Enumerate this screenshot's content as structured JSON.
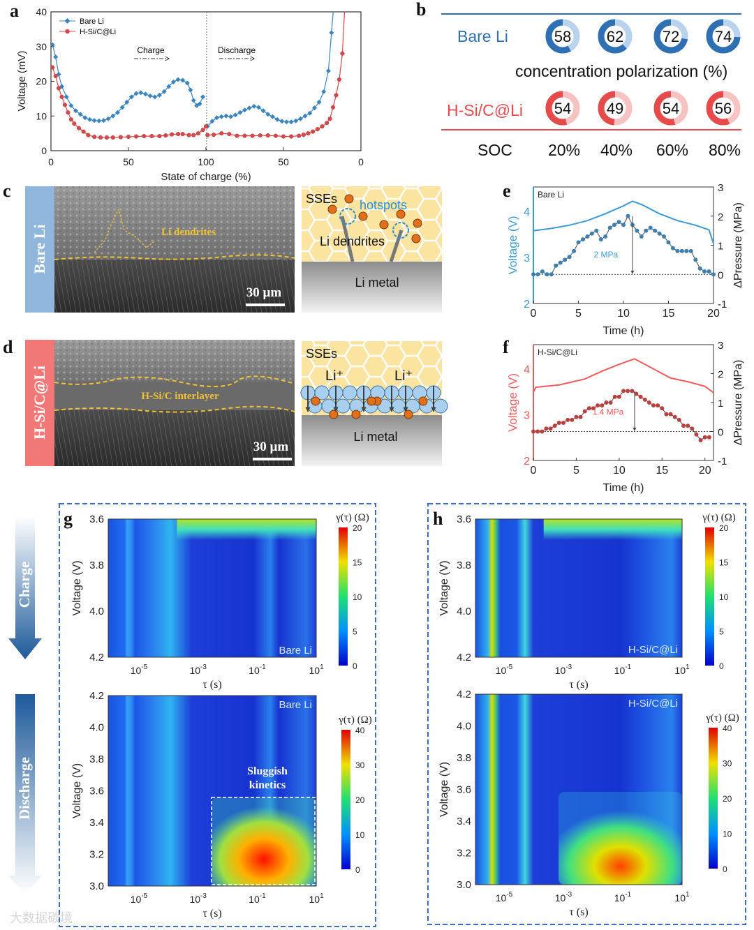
{
  "panel_letters": [
    "a",
    "b",
    "c",
    "d",
    "e",
    "f",
    "g",
    "h"
  ],
  "watermark": "大数据碳境",
  "chart_data": {
    "a": {
      "type": "line",
      "xlabel": "State of charge (%)",
      "ylabel": "Voltage (mV)",
      "ylim": [
        0,
        40
      ],
      "xlim_position": [
        0,
        200
      ],
      "xtick_labels": [
        "0",
        "50",
        "100",
        "50",
        "0"
      ],
      "ytick_labels": [
        "0",
        "10",
        "20",
        "30",
        "40"
      ],
      "annotations": {
        "charge": "Charge",
        "discharge": "Discharge"
      },
      "x_note": "x is cumulative position: 0-100 charge SOC (0→100%), 100-200 discharge (100→0%)",
      "series": [
        {
          "name": "Bare Li",
          "color": "#3a84c1",
          "marker": "diamond",
          "points": [
            [
              1,
              30.5
            ],
            [
              3,
              27
            ],
            [
              5,
              22
            ],
            [
              7,
              18.5
            ],
            [
              10,
              15.5
            ],
            [
              13,
              13
            ],
            [
              16,
              11.5
            ],
            [
              19,
              10.5
            ],
            [
              22,
              9.5
            ],
            [
              25,
              9
            ],
            [
              28,
              8.7
            ],
            [
              31,
              8.6
            ],
            [
              34,
              8.7
            ],
            [
              37,
              9.2
            ],
            [
              40,
              10
            ],
            [
              43,
              11
            ],
            [
              46,
              12.5
            ],
            [
              49,
              14
            ],
            [
              52,
              15.5
            ],
            [
              55,
              16.5
            ],
            [
              58,
              16.7
            ],
            [
              61,
              16.3
            ],
            [
              64,
              15.8
            ],
            [
              67,
              15.5
            ],
            [
              70,
              16
            ],
            [
              73,
              17
            ],
            [
              76,
              18.5
            ],
            [
              79,
              19.8
            ],
            [
              82,
              20.5
            ],
            [
              85,
              20.3
            ],
            [
              88,
              19.5
            ],
            [
              90,
              17.5
            ],
            [
              92,
              14.5
            ],
            [
              94,
              13
            ],
            [
              96,
              13.5
            ],
            [
              98,
              15.5
            ],
            [
              101,
              7
            ],
            [
              104,
              8.5
            ],
            [
              107,
              9.5
            ],
            [
              110,
              9.8
            ],
            [
              113,
              10
            ],
            [
              116,
              9.8
            ],
            [
              119,
              10.3
            ],
            [
              122,
              11
            ],
            [
              125,
              11.7
            ],
            [
              128,
              12.3
            ],
            [
              131,
              12.8
            ],
            [
              134,
              12.5
            ],
            [
              137,
              11.5
            ],
            [
              140,
              10.5
            ],
            [
              143,
              9.8
            ],
            [
              146,
              9
            ],
            [
              149,
              8.5
            ],
            [
              152,
              8.3
            ],
            [
              155,
              8.3
            ],
            [
              158,
              8.6
            ],
            [
              161,
              9.2
            ],
            [
              164,
              10
            ],
            [
              167,
              10.8
            ],
            [
              170,
              12.3
            ],
            [
              173,
              14
            ],
            [
              176,
              17
            ],
            [
              179,
              23
            ],
            [
              181,
              34
            ],
            [
              183,
              45
            ]
          ]
        },
        {
          "name": "H-Si/C@Li",
          "color": "#d9474a",
          "marker": "circle",
          "points": [
            [
              1,
              24
            ],
            [
              3,
              21.5
            ],
            [
              5,
              18
            ],
            [
              7,
              15.5
            ],
            [
              9,
              13.2
            ],
            [
              11,
              11
            ],
            [
              13,
              9
            ],
            [
              15,
              7.8
            ],
            [
              18,
              6.5
            ],
            [
              21,
              5.5
            ],
            [
              24,
              4.5
            ],
            [
              28,
              4
            ],
            [
              32,
              3.8
            ],
            [
              36,
              3.8
            ],
            [
              40,
              3.8
            ],
            [
              45,
              3.9
            ],
            [
              50,
              4
            ],
            [
              55,
              4.1
            ],
            [
              60,
              4.2
            ],
            [
              65,
              4.2
            ],
            [
              70,
              4.2
            ],
            [
              74,
              4.4
            ],
            [
              78,
              4.7
            ],
            [
              82,
              4.8
            ],
            [
              85,
              4.8
            ],
            [
              89,
              4.5
            ],
            [
              92,
              4.5
            ],
            [
              95,
              5
            ],
            [
              98,
              6
            ],
            [
              100,
              7
            ],
            [
              101,
              4.5
            ],
            [
              105,
              4.6
            ],
            [
              110,
              5
            ],
            [
              115,
              4.8
            ],
            [
              120,
              4.3
            ],
            [
              125,
              4.3
            ],
            [
              130,
              4.3
            ],
            [
              135,
              4.4
            ],
            [
              140,
              4.4
            ],
            [
              145,
              4.3
            ],
            [
              150,
              4.1
            ],
            [
              155,
              4.1
            ],
            [
              160,
              4.3
            ],
            [
              163,
              4.6
            ],
            [
              166,
              5
            ],
            [
              169,
              5.5
            ],
            [
              172,
              6.2
            ],
            [
              175,
              7
            ],
            [
              178,
              8
            ],
            [
              180,
              9.2
            ],
            [
              182,
              12.5
            ],
            [
              184,
              16
            ],
            [
              186,
              20.5
            ],
            [
              188,
              28
            ],
            [
              190,
              45
            ]
          ]
        }
      ]
    },
    "b": {
      "type": "pie",
      "title": "concentration polarization (%)",
      "x_label": "SOC",
      "categories": [
        "20%",
        "40%",
        "60%",
        "80%"
      ],
      "series": [
        {
          "name": "Bare Li",
          "color": "#2f6fb3",
          "light": "#b9d3ec",
          "values": [
            58,
            62,
            72,
            74
          ]
        },
        {
          "name": "H-Si/C@Li",
          "color": "#e64a4a",
          "light": "#f7c2c2",
          "values": [
            54,
            49,
            54,
            56
          ]
        }
      ]
    },
    "e": {
      "type": "line",
      "label": "Bare Li",
      "xlabel": "Time (h)",
      "ylabel": "Voltage (V)",
      "y2label": "ΔPressure (MPa)",
      "xlim": [
        0,
        20
      ],
      "ylim": [
        2,
        4.53
      ],
      "y2lim": [
        -1,
        3
      ],
      "xticks": [
        0,
        5,
        10,
        15,
        20
      ],
      "yticks": [
        2,
        3,
        4
      ],
      "y2ticks": [
        -1,
        0,
        1,
        2,
        3
      ],
      "color": "#3a9ad9",
      "annotation": "2 MPa",
      "annotation_time": 11,
      "annotation_value": 2,
      "voltage": [
        [
          0,
          3.58
        ],
        [
          2,
          3.63
        ],
        [
          4,
          3.7
        ],
        [
          6,
          3.8
        ],
        [
          8,
          3.95
        ],
        [
          10,
          4.12
        ],
        [
          11,
          4.22
        ],
        [
          12,
          4.15
        ],
        [
          14,
          3.95
        ],
        [
          16,
          3.8
        ],
        [
          18,
          3.7
        ],
        [
          19.5,
          3.6
        ],
        [
          20,
          3.3
        ]
      ],
      "pressure_step": 0.5,
      "pressure": [
        0,
        0,
        0.1,
        0,
        0,
        0.3,
        0.4,
        0.5,
        0.6,
        0.8,
        1.1,
        1.2,
        1.3,
        1.4,
        1.5,
        1.2,
        1.3,
        1.6,
        1.7,
        1.8,
        1.7,
        2.0,
        1.7,
        1.5,
        1.3,
        1.5,
        1.6,
        1.5,
        1.4,
        1.3,
        1.1,
        0.9,
        0.8,
        0.8,
        0.8,
        0.8,
        0.5,
        0.2,
        0.1,
        0.1,
        0.0
      ],
      "pressure_color": "#3f7fb0"
    },
    "f": {
      "type": "line",
      "label": "H-Si/C@Li",
      "xlabel": "Time (h)",
      "ylabel": "Voltage (V)",
      "y2label": "ΔPressure (MPa)",
      "xlim": [
        0,
        21
      ],
      "ylim": [
        2,
        4.53
      ],
      "y2lim": [
        -1,
        3
      ],
      "xticks": [
        0,
        5,
        10,
        15,
        20
      ],
      "yticks": [
        2,
        3,
        4
      ],
      "y2ticks": [
        -1,
        0,
        1,
        2,
        3
      ],
      "color": "#ef5b5b",
      "annotation": "1.4 MPa",
      "annotation_time": 11.8,
      "annotation_value": 1.4,
      "voltage": [
        [
          0,
          3.5
        ],
        [
          0.3,
          3.6
        ],
        [
          3,
          3.65
        ],
        [
          6,
          3.78
        ],
        [
          8,
          3.95
        ],
        [
          10,
          4.1
        ],
        [
          11.8,
          4.22
        ],
        [
          14,
          4.0
        ],
        [
          16,
          3.8
        ],
        [
          18,
          3.72
        ],
        [
          20,
          3.62
        ],
        [
          21,
          3.48
        ]
      ],
      "pressure_step": 0.5,
      "pressure": [
        0,
        0,
        0,
        0.1,
        0.1,
        0.2,
        0.3,
        0.3,
        0.4,
        0.4,
        0.5,
        0.5,
        0.7,
        0.8,
        0.8,
        0.9,
        0.9,
        1.0,
        1.0,
        1.2,
        1.2,
        1.4,
        1.4,
        1.4,
        1.3,
        1.2,
        1.1,
        1.0,
        0.9,
        0.9,
        0.8,
        0.6,
        0.6,
        0.5,
        0.4,
        0.2,
        0.2,
        0.1,
        -0.1,
        -0.3,
        -0.2,
        -0.2
      ],
      "pressure_color": "#b8413f"
    },
    "g_top": {
      "type": "heatmap",
      "label": "Bare Li",
      "xlabel": "τ (s)",
      "ylabel": "Voltage (V)",
      "ytick_labels": [
        "3.6",
        "3.8",
        "4.0",
        "4.2"
      ],
      "xtick_exps": [
        "-5",
        "-3",
        "-1",
        "1"
      ],
      "colorbar_title": "γ(τ) (Ω)",
      "colorbar_ticks": [
        "20",
        "15",
        "10",
        "5",
        "0"
      ],
      "zlim": [
        0,
        20
      ]
    },
    "g_bottom": {
      "type": "heatmap",
      "label": "Bare Li",
      "xlabel": "τ (s)",
      "ylabel": "Voltage (V)",
      "ytick_labels": [
        "4.2",
        "4.0",
        "3.8",
        "3.6",
        "3.4",
        "3.2",
        "3.0"
      ],
      "xtick_exps": [
        "-5",
        "-3",
        "-1",
        "1"
      ],
      "colorbar_title": "γ(τ) (Ω)",
      "colorbar_ticks": [
        "40",
        "30",
        "20",
        "10",
        "0"
      ],
      "zlim": [
        0,
        40
      ],
      "annotation": [
        "Sluggish",
        "kinetics"
      ]
    },
    "h_top": {
      "type": "heatmap",
      "label": "H-Si/C@Li",
      "xlabel": "τ (s)",
      "ylabel": "Voltage (V)",
      "ytick_labels": [
        "3.6",
        "3.8",
        "4.0",
        "4.2"
      ],
      "xtick_exps": [
        "-5",
        "-3",
        "-1",
        "1"
      ],
      "colorbar_title": "γ(τ) (Ω)",
      "colorbar_ticks": [
        "20",
        "15",
        "10",
        "5",
        "0"
      ],
      "zlim": [
        0,
        20
      ]
    },
    "h_bottom": {
      "type": "heatmap",
      "label": "H-Si/C@Li",
      "xlabel": "τ (s)",
      "ylabel": "Voltage (V)",
      "ytick_labels": [
        "4.2",
        "4.0",
        "3.8",
        "3.6",
        "3.4",
        "3.2",
        "3.0"
      ],
      "xtick_exps": [
        "-5",
        "-3",
        "-1",
        "1"
      ],
      "colorbar_title": "γ(τ) (Ω)",
      "colorbar_ticks": [
        "40",
        "30",
        "20",
        "10",
        "0"
      ],
      "zlim": [
        0,
        40
      ]
    }
  },
  "panel_c": {
    "side_label": "Bare Li",
    "sem_label": "Li dendrites",
    "scale": "30 µm",
    "schematic": {
      "sse": "SSEs",
      "hotspots": "hotspots",
      "dendrites": "Li dendrites",
      "metal": "Li metal"
    }
  },
  "panel_d": {
    "side_label": "H-Si/C@Li",
    "sem_label": "H-Si/C interlayer",
    "scale": "30 µm",
    "schematic": {
      "sse": "SSEs",
      "li_ion": "Li⁺",
      "metal": "Li metal"
    }
  },
  "process_arrows": {
    "charge": "Charge",
    "discharge": "Discharge"
  }
}
